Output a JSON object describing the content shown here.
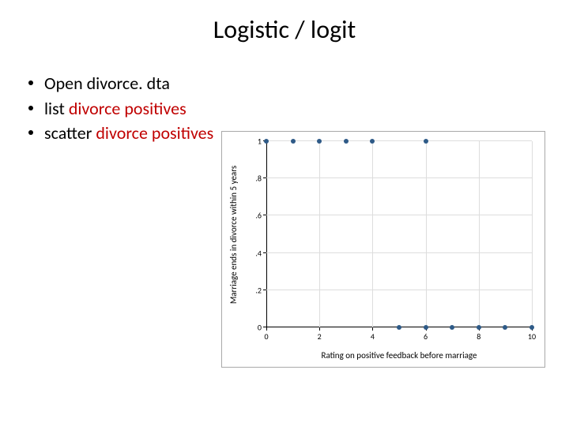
{
  "title": "Logistic / logit",
  "bullets": [
    {
      "segments": [
        {
          "t": "Open divorce. dta",
          "red": false
        }
      ]
    },
    {
      "segments": [
        {
          "t": "list ",
          "red": false
        },
        {
          "t": "divorce positives",
          "red": true
        }
      ]
    },
    {
      "segments": [
        {
          "t": "scatter ",
          "red": false
        },
        {
          "t": "divorce positives",
          "red": true
        }
      ]
    }
  ],
  "chart": {
    "type": "scatter",
    "background_color": "#ffffff",
    "border_color": "#a9a9a9",
    "grid_color": "#dddddd",
    "axis_color": "#000000",
    "xlabel": "Rating on positive feedback before marriage",
    "ylabel": "Marriage ends in divorce within 5 years",
    "label_fontsize": 11,
    "tick_fontsize": 10,
    "xlim": [
      0,
      10
    ],
    "ylim": [
      0,
      1
    ],
    "xticks": [
      0,
      2,
      4,
      6,
      8,
      10
    ],
    "yticks": [
      0,
      0.2,
      0.4,
      0.6,
      0.8,
      1
    ],
    "ytick_labels": [
      "0",
      ".2",
      ".4",
      ".6",
      ".8",
      "1"
    ],
    "marker_color": "#2e5a87",
    "marker_size": 6,
    "points": [
      {
        "x": 0,
        "y": 1
      },
      {
        "x": 1,
        "y": 1
      },
      {
        "x": 2,
        "y": 1
      },
      {
        "x": 3,
        "y": 1
      },
      {
        "x": 4,
        "y": 1
      },
      {
        "x": 5,
        "y": 0
      },
      {
        "x": 6,
        "y": 1
      },
      {
        "x": 6,
        "y": 0
      },
      {
        "x": 7,
        "y": 0
      },
      {
        "x": 8,
        "y": 0
      },
      {
        "x": 9,
        "y": 0
      },
      {
        "x": 10,
        "y": 0
      }
    ]
  }
}
